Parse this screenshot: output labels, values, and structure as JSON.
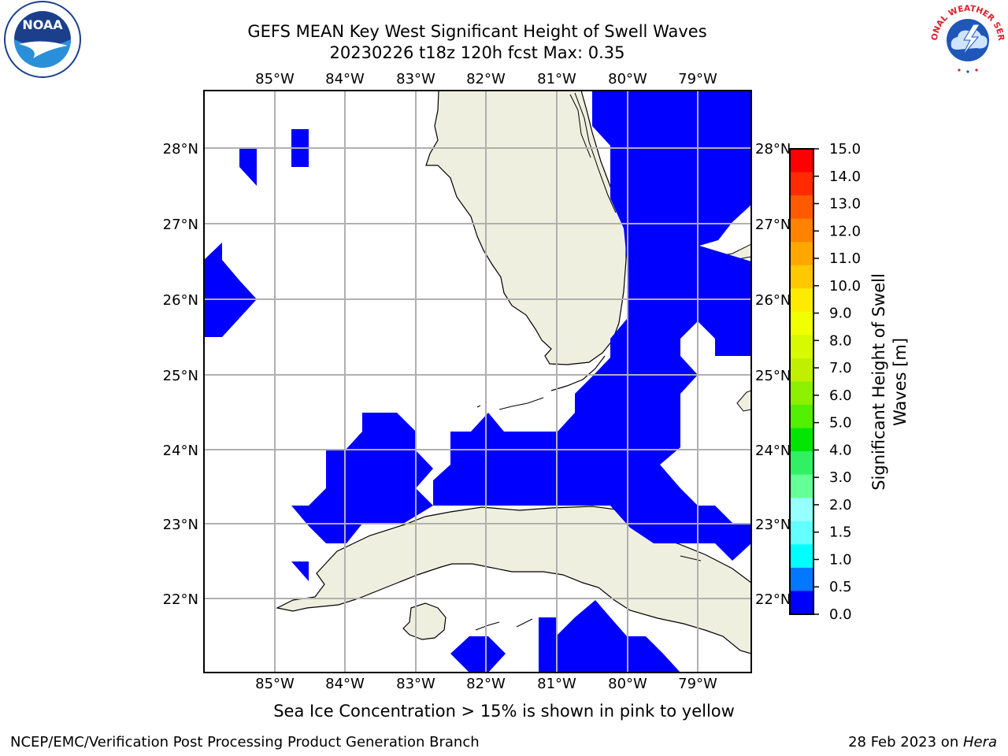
{
  "title": {
    "line1": "GEFS MEAN Key West Significant Height of Swell Waves",
    "line2": "20230226 t18z 120h fcst   Max: 0.35"
  },
  "map": {
    "lon_labels": [
      "85°W",
      "84°W",
      "83°W",
      "82°W",
      "81°W",
      "80°W",
      "79°W"
    ],
    "lat_labels": [
      "28°N",
      "27°N",
      "26°N",
      "25°N",
      "24°N",
      "23°N",
      "22°N"
    ],
    "colors": {
      "land": "#efefdf",
      "swell_low": "#0000ff",
      "grid": "#b0b0b0",
      "coast": "#000000"
    }
  },
  "colorbar": {
    "label_line1": "Significant Height of Swell",
    "label_line2": "Waves [m]",
    "ticks": [
      "15.0",
      "14.0",
      "13.0",
      "12.0",
      "11.0",
      "10.0",
      "9.0",
      "8.0",
      "7.0",
      "6.0",
      "5.0",
      "4.0",
      "3.0",
      "2.0",
      "1.5",
      "1.0",
      "0.5",
      "0.0"
    ],
    "colors_top_to_bottom": [
      "#ff0000",
      "#ff2a00",
      "#ff5a00",
      "#ff8200",
      "#ffa600",
      "#ffc800",
      "#ffeb00",
      "#f2ff00",
      "#d7fa00",
      "#c0f000",
      "#8cf000",
      "#50f000",
      "#00e600",
      "#32f064",
      "#64ff96",
      "#96ffff",
      "#64ffff",
      "#00ffff",
      "#0078ff",
      "#0000ff"
    ]
  },
  "logos": {
    "noaa_text": "NOAA",
    "nws_text": "NATIONAL WEATHER SERVICE"
  },
  "ice_note": "Sea Ice Concentration > 15% is shown in pink to yellow",
  "footer": {
    "left": "NCEP/EMC/Verification Post Processing Product Generation Branch",
    "right_prefix": "28 Feb 2023 on ",
    "right_host": "Hera"
  }
}
